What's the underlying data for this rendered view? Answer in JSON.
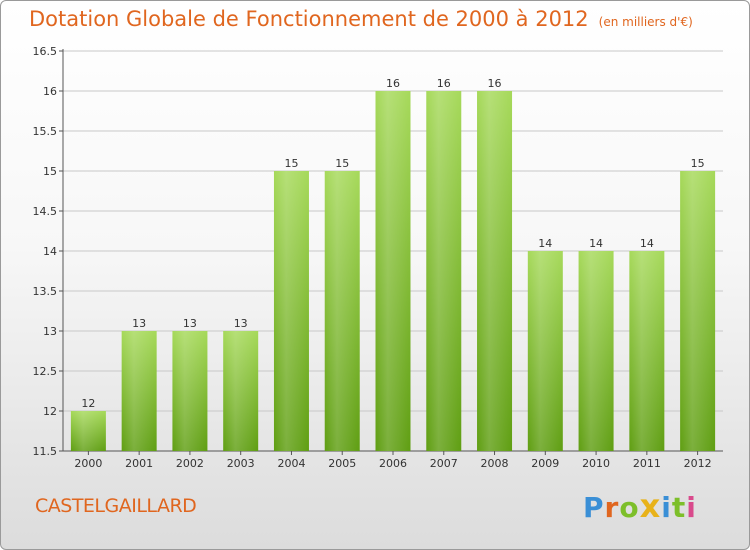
{
  "header": {
    "title": "Dotation Globale de Fonctionnement de 2000 à 2012",
    "unit": "(en milliers d'€)"
  },
  "footer": {
    "commune": "CASTELGAILLARD",
    "logo": [
      "P",
      "r",
      "o",
      "x",
      "i",
      "t",
      "i"
    ],
    "logo_colors": [
      "#3a8fd6",
      "#e0661f",
      "#7dbf2a",
      "#e8b21a",
      "#3a8fd6",
      "#7dbf2a",
      "#d94a8c"
    ]
  },
  "chart_data": {
    "type": "bar",
    "categories": [
      "2000",
      "2001",
      "2002",
      "2003",
      "2004",
      "2005",
      "2006",
      "2007",
      "2008",
      "2009",
      "2010",
      "2011",
      "2012"
    ],
    "values": [
      12,
      13,
      13,
      13,
      15,
      15,
      16,
      16,
      16,
      14,
      14,
      14,
      15
    ],
    "data_labels": [
      "12",
      "13",
      "13",
      "13",
      "15",
      "15",
      "16",
      "16",
      "16",
      "14",
      "14",
      "14",
      "15"
    ],
    "yticks": [
      "11.5",
      "12",
      "12.5",
      "13",
      "13.5",
      "14",
      "14.5",
      "15",
      "15.5",
      "16",
      "16.5"
    ],
    "ylim": [
      11.5,
      16.5
    ],
    "grid": true,
    "bar_color_top": "#a6d95a",
    "bar_color_bottom": "#5f9e12",
    "grid_color": "#c8c8c8",
    "text_color": "#333333"
  }
}
